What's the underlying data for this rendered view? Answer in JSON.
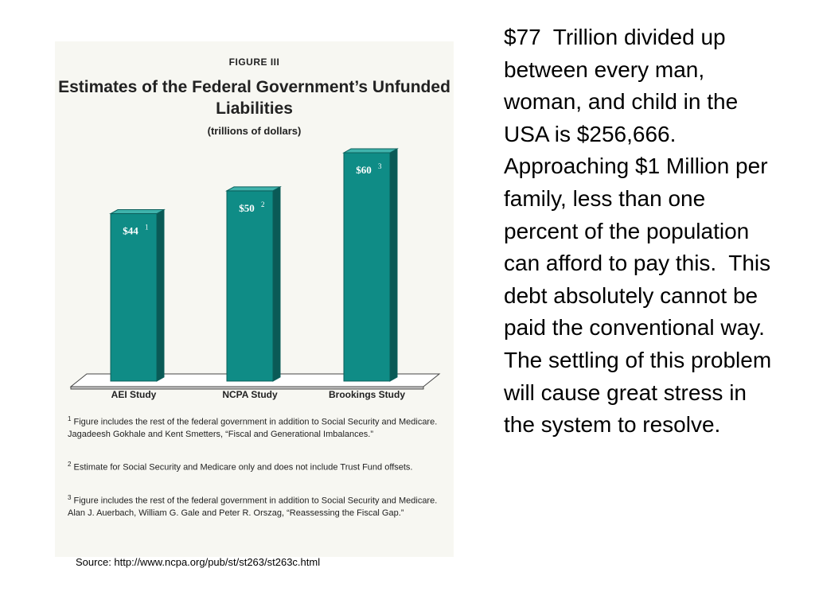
{
  "figure": {
    "label": "FIGURE   III",
    "footnotes": [
      {
        "num": "1",
        "text": "Figure includes the rest of the federal government in addition to Social Security and Medicare. Jagadeesh Gokhale and Kent Smetters, “Fiscal and Generational Imbalances.”"
      },
      {
        "num": "2",
        "text": "Estimate for Social Security and Medicare only and does not include Trust Fund offsets."
      },
      {
        "num": "3",
        "text": "Figure includes the rest of the federal government in addition to Social Security and Medicare.  Alan J. Auerbach, William G. Gale and Peter R. Orszag, “Reassessing the Fiscal Gap.”"
      }
    ]
  },
  "chart_data": {
    "type": "bar",
    "title": "Estimates of the Federal Government’s Unfunded Liabilities",
    "subtitle": "(trillions of dollars)",
    "categories": [
      "AEI Study",
      "NCPA Study",
      "Brookings Study"
    ],
    "values": [
      44,
      50,
      60
    ],
    "data_labels": [
      "$44",
      "$50",
      "$60"
    ],
    "footnote_marks": [
      "1",
      "2",
      "3"
    ],
    "xlabel": "",
    "ylabel": "",
    "grid": false,
    "bar_color": "#0f8c86"
  },
  "source": "Source: http://www.ncpa.org/pub/st/st263/st263c.html",
  "body_text": "$77  Trillion divided up between every man, woman, and child in the USA is $256,666.  Approaching $1 Million per family, less than one percent of the population can afford to pay this.  This debt absolutely cannot be paid the conventional way.  The settling of this problem will cause great stress in the system to resolve."
}
